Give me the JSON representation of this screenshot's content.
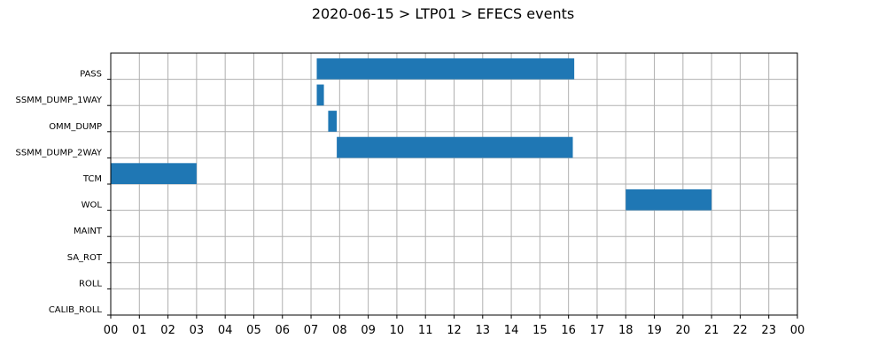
{
  "chart_data": {
    "type": "bar",
    "orientation": "horizontal-gantt",
    "title": "2020-06-15 > LTP01 > EFECS events",
    "xlabel": "",
    "ylabel": "",
    "x_unit": "hour",
    "xlim": [
      0,
      24
    ],
    "x_ticks": [
      "00",
      "01",
      "02",
      "03",
      "04",
      "05",
      "06",
      "07",
      "08",
      "09",
      "10",
      "11",
      "12",
      "13",
      "14",
      "15",
      "16",
      "17",
      "18",
      "19",
      "20",
      "21",
      "22",
      "23",
      "00"
    ],
    "categories": [
      "PASS",
      "SSMM_DUMP_1WAY",
      "OMM_DUMP",
      "SSMM_DUMP_2WAY",
      "TCM",
      "WOL",
      "MAINT",
      "SA_ROT",
      "ROLL",
      "CALIB_ROLL"
    ],
    "grid": true,
    "bar_color": "#1f77b4",
    "events": [
      {
        "category": "PASS",
        "start": 7.2,
        "end": 16.2
      },
      {
        "category": "SSMM_DUMP_1WAY",
        "start": 7.2,
        "end": 7.45
      },
      {
        "category": "OMM_DUMP",
        "start": 7.6,
        "end": 7.9
      },
      {
        "category": "SSMM_DUMP_2WAY",
        "start": 7.9,
        "end": 16.15
      },
      {
        "category": "TCM",
        "start": 0.0,
        "end": 3.0
      },
      {
        "category": "WOL",
        "start": 18.0,
        "end": 21.0
      }
    ]
  }
}
